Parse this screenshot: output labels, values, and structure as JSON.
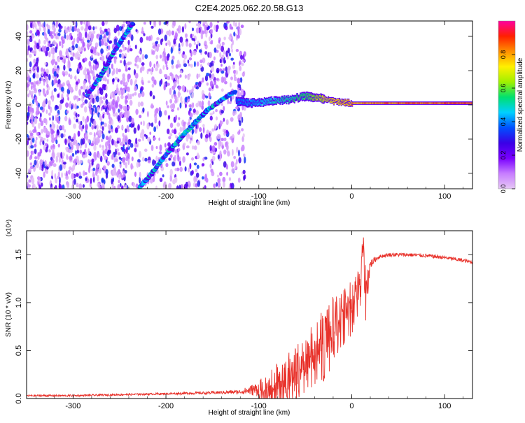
{
  "title": "C2E4.2025.062.20.58.G13",
  "colorbar": {
    "label": "Normalized spectral amplitude",
    "ticks": [
      0.0,
      0.2,
      0.4,
      0.6,
      0.8
    ],
    "tick_labels": [
      "0.0",
      "0.2",
      "0.4",
      "0.6",
      "0.8"
    ],
    "range": [
      0,
      1
    ],
    "colors": [
      "#e6c8f5",
      "#c77dff",
      "#7a00ff",
      "#3a00e6",
      "#0050ff",
      "#00d0ff",
      "#00e070",
      "#a0f000",
      "#fff000",
      "#ff9000",
      "#ff2000",
      "#ff00a0"
    ]
  },
  "chart_data": [
    {
      "type": "heatmap",
      "title": "C2E4.2025.062.20.58.G13",
      "xlabel": "Height of straight line (km)",
      "ylabel": "Frequency (Hz)",
      "xlim": [
        -350,
        130
      ],
      "ylim": [
        -49,
        49
      ],
      "x_ticks": [
        -300,
        -200,
        -100,
        0,
        100
      ],
      "x_tick_labels": [
        "-300",
        "-200",
        "-100",
        "0",
        "100"
      ],
      "y_ticks": [
        -40,
        -20,
        0,
        20,
        40
      ],
      "y_tick_labels": [
        "-40",
        "-20",
        "0",
        "20",
        "40"
      ],
      "features": {
        "noise_region_x": [
          -350,
          -115
        ],
        "ridge_low": {
          "x": [
            -228,
            -215,
            -200,
            -185,
            -170,
            -155,
            -140,
            -125
          ],
          "y": [
            -48,
            -40,
            -29,
            -20,
            -11,
            -3,
            3,
            8
          ]
        },
        "ridge_high": {
          "x": [
            -285,
            -270,
            -258,
            -245,
            -235
          ],
          "y": [
            5,
            17,
            29,
            40,
            48
          ]
        },
        "dc_band": {
          "x": [
            -125,
            -110,
            -90,
            -70,
            -50,
            -35,
            -20,
            0,
            50,
            100,
            130
          ],
          "y": [
            2,
            1,
            2,
            3,
            5,
            4,
            2,
            1,
            1,
            1,
            1
          ],
          "amplitude": [
            0.4,
            0.45,
            0.5,
            0.55,
            0.6,
            0.7,
            0.8,
            0.85,
            0.9,
            0.92,
            0.92
          ]
        }
      }
    },
    {
      "type": "line",
      "xlabel": "Height of straight line (km)",
      "ylabel": "SNR (10 * v/v)",
      "y_multiplier": "(x10⁴)",
      "xlim": [
        -350,
        130
      ],
      "ylim": [
        0,
        1.75
      ],
      "x_ticks": [
        -300,
        -200,
        -100,
        0,
        100
      ],
      "x_tick_labels": [
        "-300",
        "-200",
        "-100",
        "0",
        "100"
      ],
      "y_ticks": [
        0,
        0.5,
        1.0,
        1.5
      ],
      "y_tick_labels": [
        "0.0",
        "0.5",
        "1.0",
        "1.5"
      ],
      "series": [
        {
          "color": "#e8312a",
          "x": [
            -350,
            -300,
            -250,
            -200,
            -150,
            -120,
            -100,
            -90,
            -80,
            -70,
            -60,
            -50,
            -40,
            -30,
            -20,
            -10,
            0,
            5,
            10,
            12,
            15,
            20,
            25,
            30,
            40,
            50,
            60,
            80,
            100,
            120,
            130
          ],
          "y": [
            0.03,
            0.03,
            0.04,
            0.05,
            0.06,
            0.07,
            0.1,
            0.18,
            0.22,
            0.28,
            0.35,
            0.45,
            0.55,
            0.7,
            0.85,
            0.95,
            1.05,
            1.15,
            1.3,
            1.6,
            1.1,
            1.4,
            1.45,
            1.48,
            1.5,
            1.5,
            1.5,
            1.49,
            1.47,
            1.44,
            1.42
          ],
          "spread": [
            0.01,
            0.01,
            0.01,
            0.01,
            0.015,
            0.02,
            0.08,
            0.12,
            0.15,
            0.18,
            0.2,
            0.22,
            0.24,
            0.25,
            0.22,
            0.2,
            0.18,
            0.15,
            0.15,
            0.15,
            0.3,
            0.05,
            0.03,
            0.02,
            0.02,
            0.02,
            0.02,
            0.02,
            0.02,
            0.02,
            0.02
          ]
        }
      ]
    }
  ]
}
